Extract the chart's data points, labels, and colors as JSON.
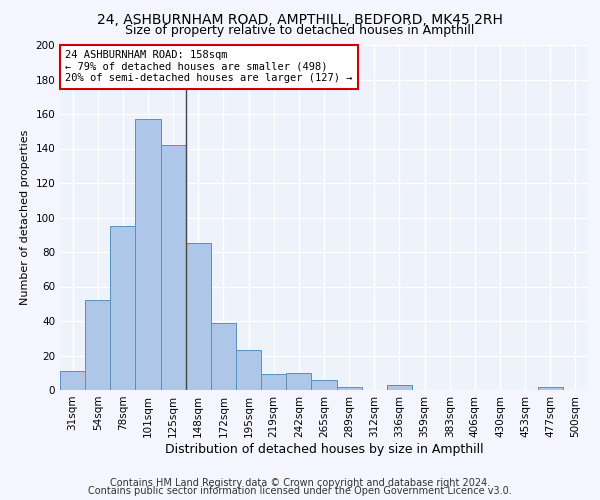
{
  "title1": "24, ASHBURNHAM ROAD, AMPTHILL, BEDFORD, MK45 2RH",
  "title2": "Size of property relative to detached houses in Ampthill",
  "xlabel": "Distribution of detached houses by size in Ampthill",
  "ylabel": "Number of detached properties",
  "bar_labels": [
    "31sqm",
    "54sqm",
    "78sqm",
    "101sqm",
    "125sqm",
    "148sqm",
    "172sqm",
    "195sqm",
    "219sqm",
    "242sqm",
    "265sqm",
    "289sqm",
    "312sqm",
    "336sqm",
    "359sqm",
    "383sqm",
    "406sqm",
    "430sqm",
    "453sqm",
    "477sqm",
    "500sqm"
  ],
  "bar_values": [
    11,
    52,
    95,
    157,
    142,
    85,
    39,
    23,
    9,
    10,
    6,
    2,
    0,
    3,
    0,
    0,
    0,
    0,
    0,
    2,
    0
  ],
  "bar_color": "#aec6e8",
  "bar_edge_color": "#5a8fc2",
  "vline_x": 4.5,
  "ylim": [
    0,
    200
  ],
  "yticks": [
    0,
    20,
    40,
    60,
    80,
    100,
    120,
    140,
    160,
    180,
    200
  ],
  "annotation_title": "24 ASHBURNHAM ROAD: 158sqm",
  "annotation_line1": "← 79% of detached houses are smaller (498)",
  "annotation_line2": "20% of semi-detached houses are larger (127) →",
  "annotation_box_color": "#ffffff",
  "annotation_box_edge": "#cc0000",
  "footer1": "Contains HM Land Registry data © Crown copyright and database right 2024.",
  "footer2": "Contains public sector information licensed under the Open Government Licence v3.0.",
  "bg_color": "#eef2fb",
  "grid_color": "#ffffff",
  "title1_fontsize": 10,
  "title2_fontsize": 9,
  "xlabel_fontsize": 9,
  "ylabel_fontsize": 8,
  "tick_fontsize": 7.5,
  "footer_fontsize": 7
}
